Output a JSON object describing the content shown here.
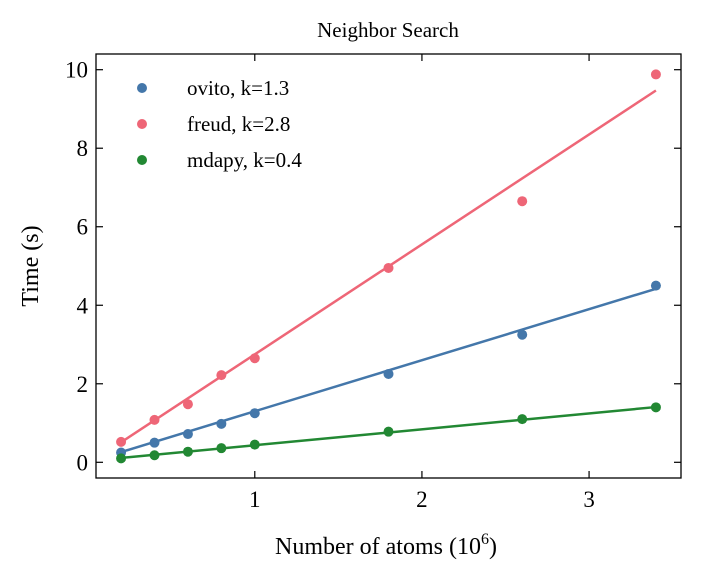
{
  "chart_data": {
    "type": "scatter",
    "title": "Neighbor Search",
    "xlabel": "Number of atoms (10",
    "xlabel_sup": "6",
    "xlabel_end": ")",
    "ylabel": "Time (s)",
    "xlim": [
      0.05,
      3.55
    ],
    "ylim": [
      -0.4,
      10.4
    ],
    "xticks": [
      1,
      2,
      3
    ],
    "yticks": [
      0,
      2,
      4,
      6,
      8,
      10
    ],
    "grid": false,
    "legend_position": "top-left",
    "series": [
      {
        "name": "ovito, k=1.3",
        "color": "#4477aa",
        "x": [
          0.2,
          0.4,
          0.6,
          0.8,
          1.0,
          1.8,
          2.6,
          3.4
        ],
        "y": [
          0.25,
          0.5,
          0.72,
          0.98,
          1.25,
          2.25,
          3.25,
          4.5
        ],
        "fit": {
          "slope": 1.3,
          "intercept": 0.0
        }
      },
      {
        "name": "freud, k=2.8",
        "color": "#ee6677",
        "x": [
          0.2,
          0.4,
          0.6,
          0.8,
          1.0,
          1.8,
          2.6,
          3.4
        ],
        "y": [
          0.52,
          1.08,
          1.48,
          2.22,
          2.65,
          4.95,
          6.65,
          9.88
        ],
        "fit": {
          "slope": 2.8,
          "intercept": -0.05
        }
      },
      {
        "name": "mdapy, k=0.4",
        "color": "#228833",
        "x": [
          0.2,
          0.4,
          0.6,
          0.8,
          1.0,
          1.8,
          2.6,
          3.4
        ],
        "y": [
          0.1,
          0.18,
          0.27,
          0.36,
          0.45,
          0.78,
          1.1,
          1.4
        ],
        "fit": {
          "slope": 0.405,
          "intercept": 0.03
        }
      }
    ]
  }
}
